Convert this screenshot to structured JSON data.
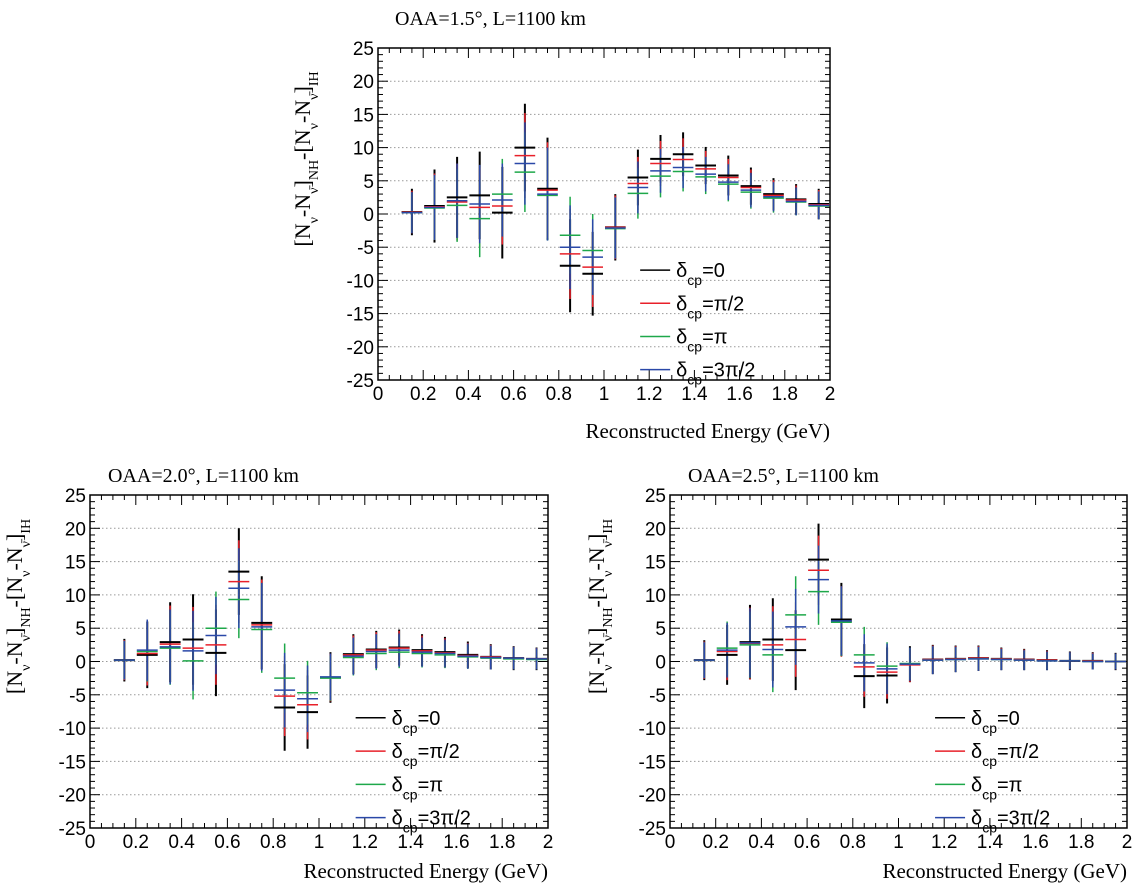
{
  "chart_data": [
    {
      "type": "errorbar",
      "title": "OAA=1.5°, L=1100 km",
      "xlabel": "Reconstructed Energy (GeV)",
      "ylabel": "[N_ν-N_ν̄]_NH-[N_ν-N_ν̄]_IH",
      "xlim": [
        0,
        2
      ],
      "ylim": [
        -25,
        25
      ],
      "xticks": [
        "0",
        "0.2",
        "0.4",
        "0.6",
        "0.8",
        "1",
        "1.2",
        "1.4",
        "1.6",
        "1.8",
        "2"
      ],
      "yticks": [
        "25",
        "20",
        "15",
        "10",
        "5",
        "0",
        "-5",
        "-10",
        "-15",
        "-20",
        "-25"
      ],
      "grid": "horizontal dotted",
      "legend_position": "lower-right",
      "x": [
        0.15,
        0.25,
        0.35,
        0.45,
        0.55,
        0.65,
        0.75,
        0.85,
        0.95,
        1.05,
        1.15,
        1.25,
        1.35,
        1.45,
        1.55,
        1.65,
        1.75,
        1.85,
        1.95
      ],
      "series": [
        {
          "name": "δcp=0",
          "label_main": "δ",
          "label_sub": "cp",
          "label_tail": "=0",
          "color": "#000000",
          "values": [
            0.3,
            1.2,
            2.5,
            2.8,
            0.2,
            10.0,
            3.8,
            -7.8,
            -9.0,
            -2.0,
            5.5,
            8.3,
            9.0,
            7.3,
            5.8,
            4.2,
            3.0,
            2.2,
            1.5
          ],
          "errors": [
            3.5,
            5.5,
            6.1,
            6.6,
            6.9,
            6.6,
            7.7,
            7.0,
            6.3,
            5.0,
            4.2,
            3.6,
            3.3,
            2.8,
            3.0,
            2.8,
            2.4,
            2.3,
            2.3
          ]
        },
        {
          "name": "δcp=π/2",
          "label_main": "δ",
          "label_sub": "cp",
          "label_tail": "=π/2",
          "color": "#e8202a",
          "values": [
            0.3,
            1.1,
            1.8,
            1.0,
            1.2,
            8.8,
            3.6,
            -6.0,
            -8.0,
            -2.0,
            4.6,
            7.6,
            8.2,
            6.8,
            5.5,
            4.0,
            2.8,
            2.1,
            1.4
          ],
          "errors": [
            3.2,
            5.0,
            5.8,
            6.0,
            5.8,
            6.4,
            7.2,
            6.8,
            6.0,
            4.8,
            4.0,
            3.4,
            3.2,
            2.7,
            2.8,
            2.7,
            2.3,
            2.2,
            2.2
          ]
        },
        {
          "name": "δcp=π",
          "label_main": "δ",
          "label_sub": "cp",
          "label_tail": "=π",
          "color": "#1ea84a",
          "values": [
            0.2,
            0.9,
            1.3,
            -0.7,
            3.0,
            6.3,
            2.8,
            -3.2,
            -5.5,
            -2.2,
            3.1,
            5.7,
            6.4,
            5.6,
            4.5,
            3.3,
            2.4,
            1.8,
            1.2
          ],
          "errors": [
            3.0,
            4.8,
            5.5,
            5.8,
            5.3,
            6.0,
            6.8,
            5.8,
            5.5,
            4.5,
            3.8,
            3.2,
            3.0,
            2.6,
            2.6,
            2.5,
            2.2,
            2.0,
            2.0
          ]
        },
        {
          "name": "δcp=3π/2",
          "label_main": "δ",
          "label_sub": "cp",
          "label_tail": "=3π/2",
          "color": "#2a48a8",
          "values": [
            0.2,
            1.0,
            2.0,
            1.5,
            2.1,
            7.6,
            3.0,
            -5.0,
            -6.5,
            -2.1,
            4.0,
            6.5,
            7.0,
            6.0,
            4.8,
            3.6,
            2.6,
            1.9,
            1.3
          ],
          "errors": [
            3.1,
            4.9,
            5.6,
            5.9,
            5.5,
            6.2,
            7.0,
            6.3,
            5.7,
            4.6,
            3.9,
            3.3,
            3.1,
            2.6,
            2.7,
            2.6,
            2.2,
            2.1,
            2.1
          ]
        }
      ]
    },
    {
      "type": "errorbar",
      "title": "OAA=2.0°, L=1100 km",
      "xlabel": "Reconstructed Energy (GeV)",
      "ylabel": "[N_ν-N_ν̄]_NH-[N_ν-N_ν̄]_IH",
      "xlim": [
        0,
        2
      ],
      "ylim": [
        -25,
        25
      ],
      "xticks": [
        "0",
        "0.2",
        "0.4",
        "0.6",
        "0.8",
        "1",
        "1.2",
        "1.4",
        "1.6",
        "1.8",
        "2"
      ],
      "yticks": [
        "25",
        "20",
        "15",
        "10",
        "5",
        "0",
        "-5",
        "-10",
        "-15",
        "-20",
        "-25"
      ],
      "grid": "horizontal dotted",
      "legend_position": "lower-right",
      "x": [
        0.15,
        0.25,
        0.35,
        0.45,
        0.55,
        0.65,
        0.75,
        0.85,
        0.95,
        1.05,
        1.15,
        1.25,
        1.35,
        1.45,
        1.55,
        1.65,
        1.75,
        1.85,
        1.95
      ],
      "series": [
        {
          "name": "δcp=0",
          "label_main": "δ",
          "label_sub": "cp",
          "label_tail": "=0",
          "color": "#000000",
          "values": [
            0.2,
            1.0,
            2.9,
            3.3,
            1.3,
            13.5,
            5.8,
            -6.9,
            -7.6,
            -2.4,
            1.1,
            1.8,
            2.1,
            1.7,
            1.4,
            1.0,
            0.7,
            0.5,
            0.4
          ],
          "errors": [
            3.2,
            5.0,
            6.0,
            6.8,
            6.5,
            6.5,
            7.0,
            6.5,
            5.5,
            3.8,
            3.0,
            2.8,
            2.7,
            2.4,
            2.3,
            2.0,
            1.9,
            1.8,
            1.7
          ]
        },
        {
          "name": "δcp=π/2",
          "label_main": "δ",
          "label_sub": "cp",
          "label_tail": "=π/2",
          "color": "#e8202a",
          "values": [
            0.2,
            1.2,
            2.6,
            2.0,
            2.5,
            12.0,
            5.5,
            -5.2,
            -6.5,
            -2.4,
            1.0,
            1.7,
            2.0,
            1.6,
            1.3,
            0.9,
            0.7,
            0.5,
            0.4
          ],
          "errors": [
            3.0,
            4.8,
            5.8,
            6.2,
            6.0,
            6.2,
            6.8,
            6.0,
            5.2,
            3.6,
            2.9,
            2.7,
            2.6,
            2.3,
            2.2,
            1.9,
            1.8,
            1.7,
            1.6
          ]
        },
        {
          "name": "δcp=π",
          "label_main": "δ",
          "label_sub": "cp",
          "label_tail": "=π",
          "color": "#1ea84a",
          "values": [
            0.2,
            1.5,
            2.0,
            0.1,
            5.0,
            9.3,
            4.8,
            -2.5,
            -4.7,
            -2.5,
            0.6,
            1.2,
            1.4,
            1.2,
            1.0,
            0.7,
            0.5,
            0.4,
            0.3
          ],
          "errors": [
            2.8,
            4.5,
            5.5,
            5.8,
            5.5,
            5.8,
            6.5,
            5.2,
            4.8,
            3.4,
            2.7,
            2.5,
            2.4,
            2.1,
            2.0,
            1.8,
            1.7,
            1.6,
            1.5
          ]
        },
        {
          "name": "δcp=3π/2",
          "label_main": "δ",
          "label_sub": "cp",
          "label_tail": "=3π/2",
          "color": "#2a48a8",
          "values": [
            0.2,
            1.7,
            2.2,
            1.6,
            3.9,
            11.0,
            5.2,
            -4.3,
            -5.6,
            -2.3,
            0.8,
            1.5,
            1.7,
            1.4,
            1.2,
            0.8,
            0.6,
            0.5,
            0.4
          ],
          "errors": [
            2.9,
            4.6,
            5.6,
            6.0,
            5.8,
            6.0,
            6.6,
            5.6,
            5.0,
            3.5,
            2.8,
            2.6,
            2.5,
            2.2,
            2.1,
            1.9,
            1.8,
            1.7,
            1.6
          ]
        }
      ]
    },
    {
      "type": "errorbar",
      "title": "OAA=2.5°, L=1100 km",
      "xlabel": "Reconstructed Energy (GeV)",
      "ylabel": "[N_ν-N_ν̄]_NH-[N_ν-N_ν̄]_IH",
      "xlim": [
        0,
        2
      ],
      "ylim": [
        -25,
        25
      ],
      "xticks": [
        "0",
        "0.2",
        "0.4",
        "0.6",
        "0.8",
        "1",
        "1.2",
        "1.4",
        "1.6",
        "1.8",
        "2"
      ],
      "yticks": [
        "25",
        "20",
        "15",
        "10",
        "5",
        "0",
        "-5",
        "-10",
        "-15",
        "-20",
        "-25"
      ],
      "grid": "horizontal dotted",
      "legend_position": "lower-right",
      "x": [
        0.15,
        0.25,
        0.35,
        0.45,
        0.55,
        0.65,
        0.75,
        0.85,
        0.95,
        1.05,
        1.15,
        1.25,
        1.35,
        1.45,
        1.55,
        1.65,
        1.75,
        1.85,
        1.95
      ],
      "series": [
        {
          "name": "δcp=0",
          "label_main": "δ",
          "label_sub": "cp",
          "label_tail": "=0",
          "color": "#000000",
          "values": [
            0.2,
            1.0,
            2.9,
            3.3,
            1.7,
            15.3,
            6.3,
            -2.2,
            -2.1,
            -0.4,
            0.3,
            0.4,
            0.5,
            0.4,
            0.3,
            0.2,
            0.1,
            0.1,
            0.0
          ],
          "errors": [
            3.0,
            4.5,
            5.6,
            6.2,
            6.0,
            5.4,
            5.5,
            4.8,
            4.2,
            2.7,
            2.2,
            2.0,
            1.9,
            1.7,
            1.6,
            1.5,
            1.4,
            1.3,
            1.3
          ]
        },
        {
          "name": "δcp=π/2",
          "label_main": "δ",
          "label_sub": "cp",
          "label_tail": "=π/2",
          "color": "#e8202a",
          "values": [
            0.2,
            1.5,
            2.7,
            2.5,
            3.3,
            13.7,
            6.0,
            -0.8,
            -1.6,
            -0.5,
            0.3,
            0.4,
            0.5,
            0.4,
            0.3,
            0.2,
            0.1,
            0.1,
            0.0
          ],
          "errors": [
            2.8,
            4.3,
            5.4,
            5.8,
            5.6,
            5.2,
            5.3,
            4.5,
            4.0,
            2.6,
            2.1,
            1.9,
            1.8,
            1.6,
            1.5,
            1.4,
            1.3,
            1.2,
            1.2
          ]
        },
        {
          "name": "δcp=π",
          "label_main": "δ",
          "label_sub": "cp",
          "label_tail": "=π",
          "color": "#1ea84a",
          "values": [
            0.2,
            2.0,
            2.5,
            1.0,
            7.0,
            10.5,
            5.9,
            1.0,
            -0.7,
            -0.3,
            0.2,
            0.3,
            0.4,
            0.3,
            0.2,
            0.1,
            0.1,
            0.0,
            0.0
          ],
          "errors": [
            2.6,
            4.0,
            5.0,
            5.6,
            5.8,
            5.0,
            5.1,
            4.2,
            3.6,
            2.4,
            2.0,
            1.8,
            1.7,
            1.5,
            1.4,
            1.3,
            1.2,
            1.2,
            1.1
          ]
        },
        {
          "name": "δcp=3π/2",
          "label_main": "δ",
          "label_sub": "cp",
          "label_tail": "=3π/2",
          "color": "#2a48a8",
          "values": [
            0.2,
            1.7,
            2.8,
            1.8,
            5.2,
            12.3,
            6.1,
            -0.2,
            -1.1,
            -0.4,
            0.2,
            0.3,
            0.4,
            0.3,
            0.2,
            0.1,
            0.1,
            0.0,
            0.0
          ],
          "errors": [
            2.7,
            4.1,
            5.2,
            5.7,
            5.7,
            5.1,
            5.2,
            4.3,
            3.8,
            2.5,
            2.1,
            1.9,
            1.8,
            1.6,
            1.5,
            1.4,
            1.3,
            1.2,
            1.2
          ]
        }
      ]
    }
  ]
}
